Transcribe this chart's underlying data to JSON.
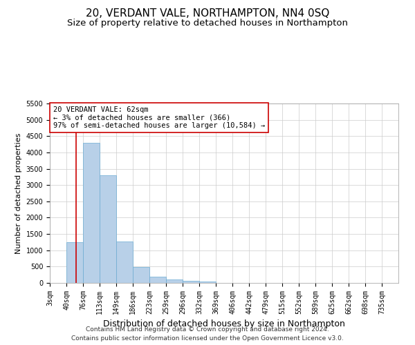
{
  "title": "20, VERDANT VALE, NORTHAMPTON, NN4 0SQ",
  "subtitle": "Size of property relative to detached houses in Northampton",
  "xlabel": "Distribution of detached houses by size in Northampton",
  "ylabel": "Number of detached properties",
  "footer_line1": "Contains HM Land Registry data © Crown copyright and database right 2024.",
  "footer_line2": "Contains public sector information licensed under the Open Government Licence v3.0.",
  "annotation_title": "20 VERDANT VALE: 62sqm",
  "annotation_line2": "← 3% of detached houses are smaller (366)",
  "annotation_line3": "97% of semi-detached houses are larger (10,584) →",
  "bar_categories": [
    "3sqm",
    "40sqm",
    "76sqm",
    "113sqm",
    "149sqm",
    "186sqm",
    "223sqm",
    "259sqm",
    "296sqm",
    "332sqm",
    "369sqm",
    "406sqm",
    "442sqm",
    "479sqm",
    "515sqm",
    "552sqm",
    "589sqm",
    "625sqm",
    "662sqm",
    "698sqm",
    "735sqm"
  ],
  "bar_values": [
    0,
    1250,
    4300,
    3300,
    1270,
    480,
    200,
    100,
    65,
    50,
    0,
    0,
    0,
    0,
    0,
    0,
    0,
    0,
    0,
    0,
    0
  ],
  "bar_color": "#b8d0e8",
  "bar_edge_color": "#6aabd2",
  "vline_color": "#cc0000",
  "vline_x_pos": 1.6,
  "ylim": [
    0,
    5500
  ],
  "yticks": [
    0,
    500,
    1000,
    1500,
    2000,
    2500,
    3000,
    3500,
    4000,
    4500,
    5000,
    5500
  ],
  "annotation_box_color": "#cc0000",
  "background_color": "#ffffff",
  "grid_color": "#cccccc",
  "title_fontsize": 11,
  "subtitle_fontsize": 9.5,
  "xlabel_fontsize": 9,
  "ylabel_fontsize": 8,
  "tick_fontsize": 7,
  "annotation_fontsize": 7.5,
  "footer_fontsize": 6.5
}
